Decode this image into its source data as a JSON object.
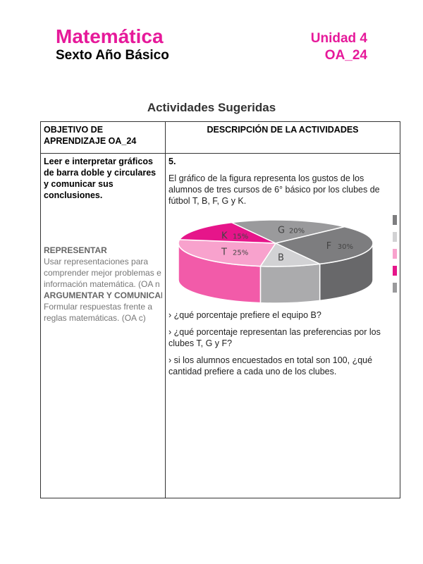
{
  "header": {
    "title": "Matemática",
    "subtitle": "Sexto Año Básico",
    "unit": "Unidad 4",
    "oa": "OA_24"
  },
  "section_title": "Actividades Sugeridas",
  "table": {
    "col1_header": "OBJETIVO DE APRENDIZAJE OA_24",
    "col2_header": "DESCRIPCIÓN DE LA ACTIVIDADES",
    "objective": "Leer e interpretar gráficos de barra doble y circulares y comunicar sus conclusiones.",
    "competencies": {
      "h1": "REPRESENTAR",
      "t1a": "Usar representaciones para",
      "t1b": "comprender mejor problemas e",
      "t1c": "información matemática. (OA n",
      "h2": "ARGUMENTAR Y COMUNICAR",
      "t2a": "Formular respuestas frente a",
      "t2b": "reglas matemáticas. (OA c)"
    },
    "number": "5.",
    "intro": "El gráfico de la figura representa los gustos de los alumnos de tres cursos de 6° básico por los clubes de fútbol T, B, F, G y K.",
    "q1": "› ¿qué porcentaje prefiere el equipo B?",
    "q2": "› ¿qué porcentaje representan las preferencias por los clubes  T, G y F?",
    "q3": "› si los alumnos encuestados en total son 100, ¿qué cantidad prefiere a cada uno de los clubes."
  },
  "chart_data": {
    "type": "pie",
    "style": "3d",
    "slices": [
      {
        "name": "G",
        "value": 20,
        "label": "20%",
        "color": "#9a9a9c",
        "side": "#858587"
      },
      {
        "name": "F",
        "value": 30,
        "label": "30%",
        "color": "#7d7d7f",
        "side": "#68686a"
      },
      {
        "name": "B",
        "value": 10,
        "label": "",
        "color": "#d2d2d4",
        "side": "#ababad"
      },
      {
        "name": "T",
        "value": 25,
        "label": "25%",
        "color": "#f8a2cd",
        "side": "#f25ba9"
      },
      {
        "name": "K",
        "value": 15,
        "label": "15%",
        "color": "#e6158a",
        "side": "#c8107a"
      }
    ],
    "legend_colors": [
      "#7d7d7f",
      "#d2d2d4",
      "#f8a2cd",
      "#e6158a",
      "#9a9a9c"
    ]
  }
}
